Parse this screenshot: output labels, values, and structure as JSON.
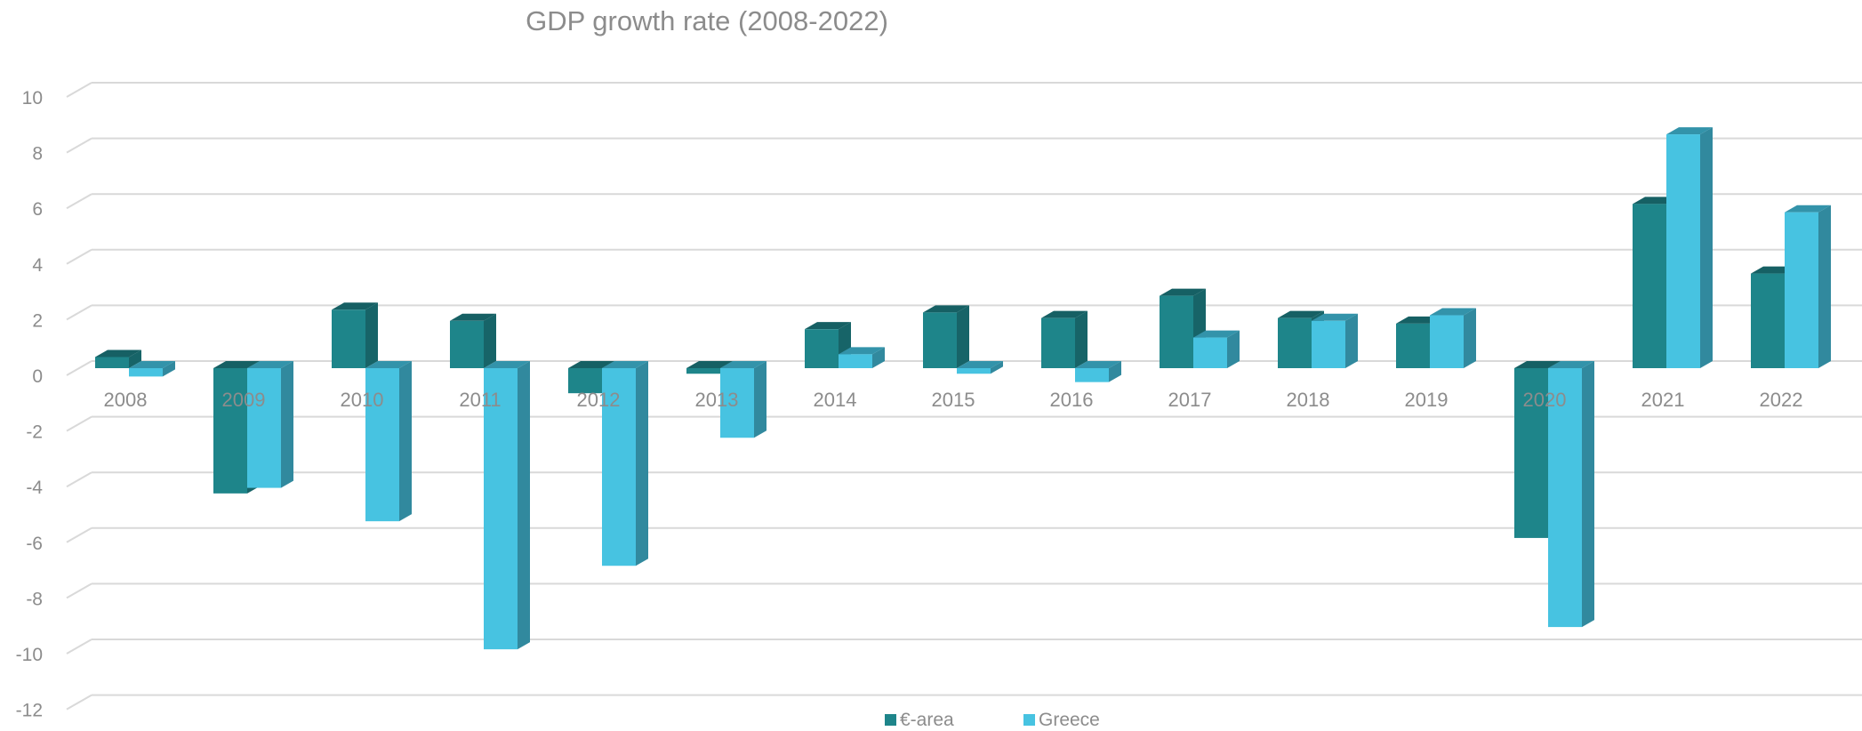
{
  "chart_data": {
    "type": "bar",
    "title": "GDP growth rate (2008-2022)",
    "categories": [
      "2008",
      "2009",
      "2010",
      "2011",
      "2012",
      "2013",
      "2014",
      "2015",
      "2016",
      "2017",
      "2018",
      "2019",
      "2020",
      "2021",
      "2022"
    ],
    "series": [
      {
        "name": "€-area",
        "values": [
          0.4,
          -4.5,
          2.1,
          1.7,
          -0.9,
          -0.2,
          1.4,
          2.0,
          1.8,
          2.6,
          1.8,
          1.6,
          -6.1,
          5.9,
          3.4
        ]
      },
      {
        "name": "Greece",
        "values": [
          -0.3,
          -4.3,
          -5.5,
          -10.1,
          -7.1,
          -2.5,
          0.5,
          -0.2,
          -0.5,
          1.1,
          1.7,
          1.9,
          -9.3,
          8.4,
          5.6
        ]
      }
    ],
    "ylim": [
      -12,
      10
    ],
    "yticks": [
      10,
      8,
      6,
      4,
      2,
      0,
      -2,
      -4,
      -6,
      -8,
      -10,
      -12
    ],
    "grid": true,
    "legend_position": "bottom",
    "colors": {
      "series1_front": "#1e858a",
      "series1_side": "#176468",
      "series1_top": "#166064",
      "series2_front": "#47c3e1",
      "series2_side": "#31899e",
      "series2_top": "#3393aa",
      "grid": "#d9d9d9",
      "text": "#8c8c8c"
    }
  }
}
